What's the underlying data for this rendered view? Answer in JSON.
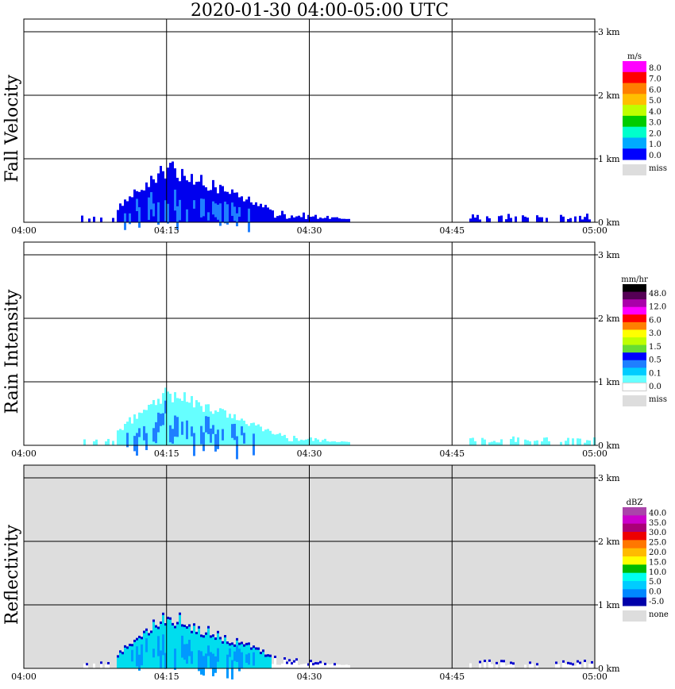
{
  "title": "2020-01-30   04:00-05:00 UTC",
  "chart_data": [
    {
      "type": "heatmap",
      "ylabel": "Fall Velocity",
      "x_ticks": [
        "04:00",
        "04:15",
        "04:30",
        "04:45",
        "05:00"
      ],
      "y_ticks": [
        "0 km",
        "1 km",
        "2 km",
        "3 km"
      ],
      "x_range": [
        "04:00",
        "05:00"
      ],
      "y_range_km": [
        0,
        3.0
      ],
      "background": "#ffffff",
      "legend": {
        "unit": "m/s",
        "colors": [
          "#ff00ff",
          "#ff0000",
          "#ff7f00",
          "#ffbf00",
          "#bfff00",
          "#00cc00",
          "#00ffcc",
          "#00aaff",
          "#0000ff"
        ],
        "labels": [
          "8.0",
          "7.0",
          "6.0",
          "5.0",
          "4.0",
          "3.0",
          "2.0",
          "1.0",
          "0.0"
        ],
        "missing": "miss",
        "missing_color": "#dddddd"
      },
      "fill": {
        "core": "#0000ee",
        "inner": "#1f7fff",
        "sparse": "#0000ee"
      }
    },
    {
      "type": "heatmap",
      "ylabel": "Rain Intensity",
      "x_ticks": [
        "04:00",
        "04:15",
        "04:30",
        "04:45",
        "05:00"
      ],
      "y_ticks": [
        "0 km",
        "1 km",
        "2 km",
        "3 km"
      ],
      "x_range": [
        "04:00",
        "05:00"
      ],
      "y_range_km": [
        0,
        3.0
      ],
      "background": "#ffffff",
      "legend": {
        "unit": "mm/hr",
        "colors": [
          "#000000",
          "#550055",
          "#aa00aa",
          "#ff00ff",
          "#ff0000",
          "#ff7f00",
          "#ffff00",
          "#bfff00",
          "#66dd33",
          "#0000ff",
          "#1f7fff",
          "#00ccff",
          "#66ffff",
          "#ffffff"
        ],
        "labels": [
          "48.0",
          "12.0",
          "6.0",
          "3.0",
          "1.5",
          "0.5",
          "0.1",
          "0.0"
        ],
        "missing": "miss",
        "missing_color": "#dddddd"
      },
      "fill": {
        "core": "#66ffff",
        "inner": "#1f7fff",
        "sparse": "#66ffff"
      }
    },
    {
      "type": "heatmap",
      "ylabel": "Reflectivity",
      "x_ticks": [
        "04:00",
        "04:15",
        "04:30",
        "04:45",
        "05:00"
      ],
      "y_ticks": [
        "0 km",
        "1 km",
        "2 km",
        "3 km"
      ],
      "x_range": [
        "04:00",
        "05:00"
      ],
      "y_range_km": [
        0,
        3.0
      ],
      "background": "#dddddd",
      "legend": {
        "unit": "dBZ",
        "colors": [
          "#aa44aa",
          "#cc00cc",
          "#aa0077",
          "#ee0000",
          "#ff7700",
          "#ffbb00",
          "#ffff00",
          "#00bb00",
          "#00ffee",
          "#00ccff",
          "#0088ff",
          "#0000aa"
        ],
        "labels": [
          "40.0",
          "35.0",
          "30.0",
          "25.0",
          "20.0",
          "15.0",
          "10.0",
          "5.0",
          "0.0",
          "-5.0"
        ],
        "missing": "none",
        "missing_color": "#dddddd"
      },
      "fill": {
        "core": "#00ddee",
        "inner": "#0099ff",
        "sparse": "#ffffff",
        "edge": "#0000cc"
      }
    }
  ]
}
